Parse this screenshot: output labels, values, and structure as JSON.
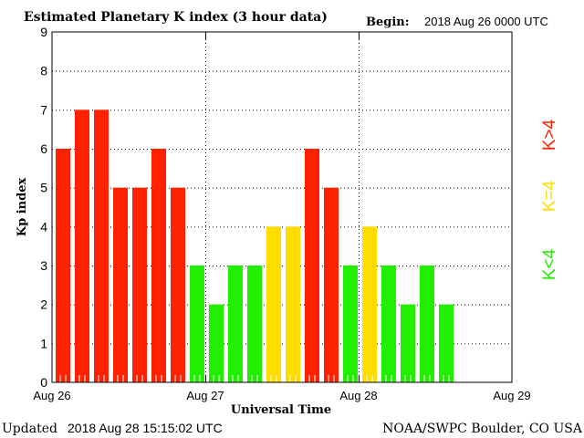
{
  "chart_data": {
    "type": "bar",
    "title": "Estimated Planetary K index (3 hour data)",
    "begin_label": "Begin:",
    "begin_value": "2018 Aug 26 0000 UTC",
    "xlabel": "Universal Time",
    "ylabel": "Kp index",
    "ylim": [
      0,
      9
    ],
    "yticks": [
      "0",
      "1",
      "2",
      "3",
      "4",
      "5",
      "6",
      "7",
      "8",
      "9"
    ],
    "xticks": [
      "Aug 26",
      "Aug 27",
      "Aug 28",
      "Aug 29"
    ],
    "slots_total": 24,
    "values": [
      6,
      7,
      7,
      5,
      5,
      6,
      5,
      3,
      2,
      3,
      3,
      4,
      4,
      6,
      5,
      3,
      4,
      3,
      2,
      3,
      2
    ],
    "grid": true,
    "legend": [
      {
        "label": "K<4",
        "color": "#22ee00"
      },
      {
        "label": "K=4",
        "color": "#ffdd00"
      },
      {
        "label": "K>4",
        "color": "#ff2200"
      }
    ],
    "legend_placement": "right"
  },
  "footer": {
    "updated_label": "Updated",
    "updated_value": "2018 Aug 28 15:15:02 UTC",
    "source": "NOAA/SWPC Boulder, CO USA"
  }
}
